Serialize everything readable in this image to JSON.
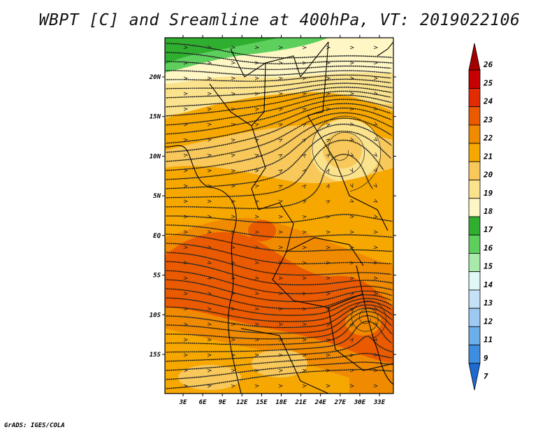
{
  "title": "WBPT [C] and Sreamline at 400hPa, VT: 2019022106",
  "footer": "GrADS: IGES/COLA",
  "map": {
    "lat_labels": [
      "20N",
      "15N",
      "10N",
      "5N",
      "EQ",
      "5S",
      "10S",
      "15S"
    ],
    "lat_values": [
      20,
      15,
      10,
      5,
      0,
      -5,
      -10,
      -15
    ],
    "lon_labels": [
      "3E",
      "6E",
      "9E",
      "12E",
      "15E",
      "18E",
      "21E",
      "24E",
      "27E",
      "30E",
      "33E"
    ],
    "lon_values": [
      3,
      6,
      9,
      12,
      15,
      18,
      21,
      24,
      27,
      30,
      33
    ]
  },
  "colorbar": {
    "levels": [
      "26",
      "25",
      "24",
      "23",
      "22",
      "21",
      "20",
      "19",
      "18",
      "17",
      "16",
      "15",
      "14",
      "13",
      "12",
      "11",
      "9",
      "7"
    ],
    "colors": [
      "#a50000",
      "#c80000",
      "#e22b00",
      "#ea5a00",
      "#f08a00",
      "#f6a700",
      "#f8c85a",
      "#fbe28d",
      "#fef6c4",
      "#2fae2f",
      "#5dcf5d",
      "#a8eba8",
      "#e0f8f8",
      "#c4e1f8",
      "#9ccaf3",
      "#6aaeea",
      "#3d8ee0",
      "#1f6ad2"
    ]
  }
}
